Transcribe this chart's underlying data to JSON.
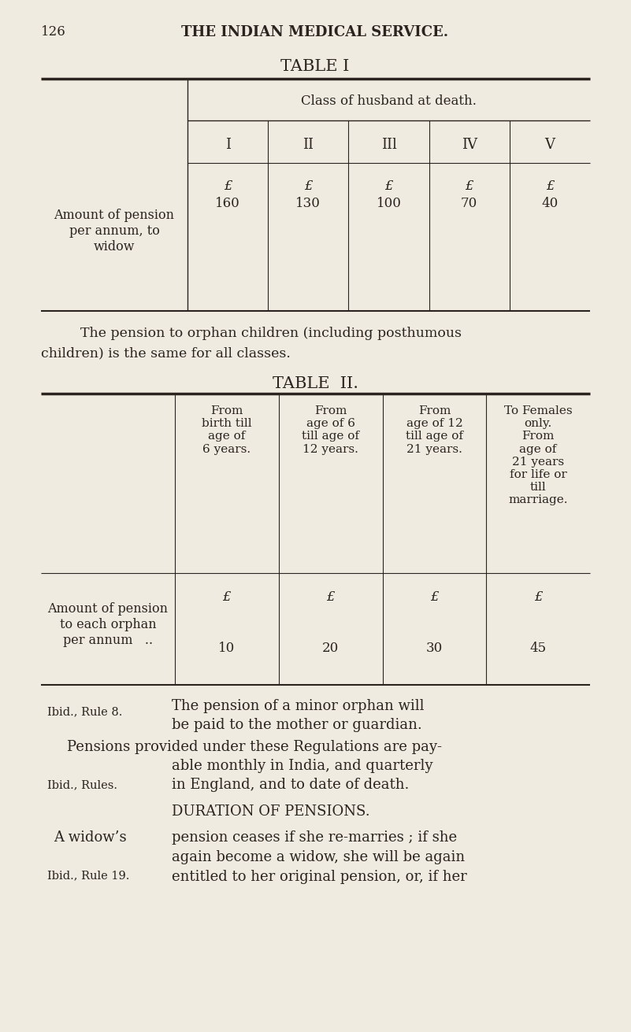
{
  "bg_color": "#f0ebe0",
  "text_color": "#2a2320",
  "page_number": "126",
  "page_header": "THE INDIAN MEDICAL SERVICE.",
  "table1_title": "TABLE I",
  "table1_col_header": "Class of husband at death.",
  "table1_classes": [
    "I",
    "II",
    "IIl",
    "IV",
    "V"
  ],
  "table1_row_label_lines": [
    "Amount of pension",
    "per annum, to",
    "widow"
  ],
  "table1_pound_symbol": "£",
  "table1_values": [
    "160",
    "130",
    "100",
    "70",
    "40"
  ],
  "orphan_text_line1": "    The pension to orphan children (including posthumous",
  "orphan_text_line2": "children) is the same for all classes.",
  "table2_title": "TABLE  II.",
  "table2_col_headers": [
    "From\nbirth till\nage of\n6 years.",
    "From\nage of 6\ntill age of\n12 years.",
    "From\nage of 12\ntill age of\n21 years.",
    "To Females\nonly.\nFrom\nage of\n21 years\nfor life or\ntill\nmarriage."
  ],
  "table2_row_label_lines": [
    "Amount of pension",
    "to each orphan",
    "per annum   .."
  ],
  "table2_values": [
    "10",
    "20",
    "30",
    "45"
  ],
  "footnote1_ref": "Ibid., Rule 8.",
  "footnote1_text_line1": "The pension of a minor orphan will",
  "footnote1_text_line2": "be paid to the mother or guardian.",
  "footnote2_text_line1": "Pensions provided under these Regulations are pay-",
  "footnote2_text_line2": "able monthly in India, and quarterly",
  "footnote2_ref": "Ibid., Rules.",
  "footnote2_text_line3": "in England, and to date of death.",
  "section_title": "DURATION OF PENSIONS.",
  "body_line1_left": "A widow’s",
  "body_line1_right": "pension ceases if she re-marries ; if she",
  "body_line2": "again become a widow, she will be again",
  "body_ref": "Ibid., Rule 19.",
  "body_line3": "entitled to her original pension, or, if her"
}
